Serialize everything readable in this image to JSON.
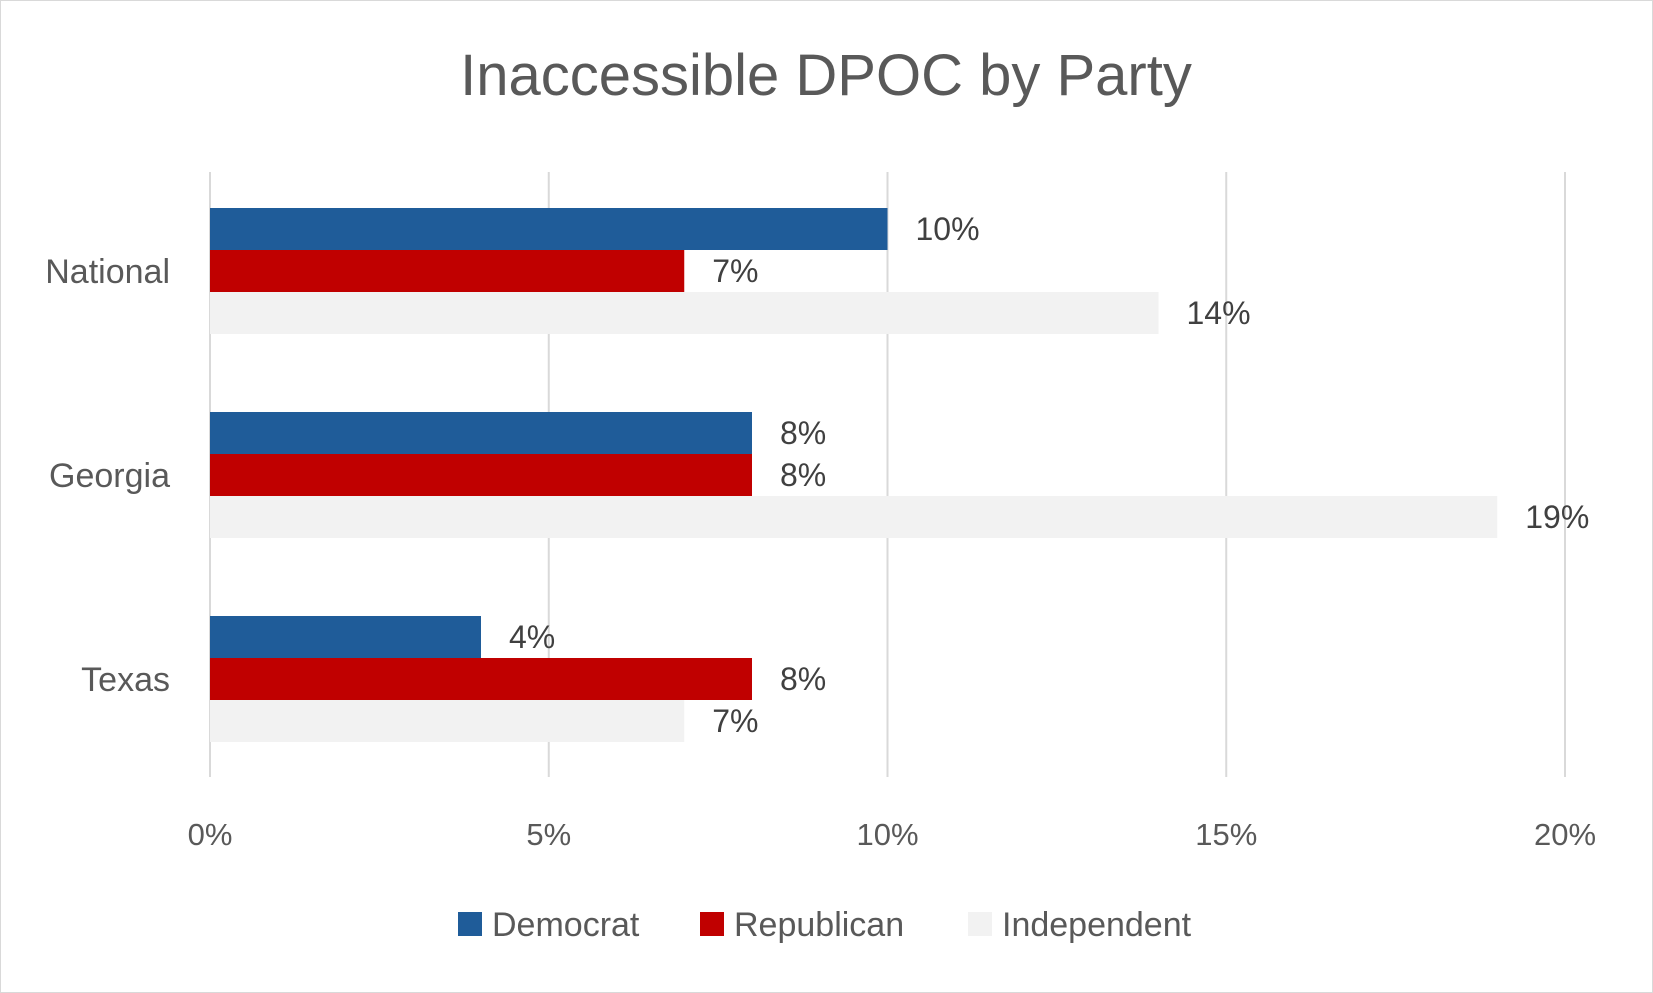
{
  "chart_data": {
    "type": "bar",
    "orientation": "horizontal",
    "title": "Inaccessible DPOC by Party",
    "categories": [
      "National",
      "Georgia",
      "Texas"
    ],
    "series": [
      {
        "name": "Democrat",
        "color": "#1f5c99",
        "values": [
          10,
          8,
          4
        ],
        "labels": [
          "10%",
          "8%",
          "4%"
        ]
      },
      {
        "name": "Republican",
        "color": "#c00000",
        "values": [
          7,
          8,
          8
        ],
        "labels": [
          "7%",
          "8%",
          "8%"
        ]
      },
      {
        "name": "Independent",
        "color": "#f2f2f2",
        "values": [
          14,
          19,
          7
        ],
        "labels": [
          "14%",
          "19%",
          "7%"
        ]
      }
    ],
    "xlim": [
      0,
      20
    ],
    "x_ticks": [
      0,
      5,
      10,
      15,
      20
    ],
    "x_tick_labels": [
      "0%",
      "5%",
      "10%",
      "15%",
      "20%"
    ],
    "xlabel": "",
    "ylabel": "",
    "grid": true,
    "legend_position": "bottom"
  }
}
